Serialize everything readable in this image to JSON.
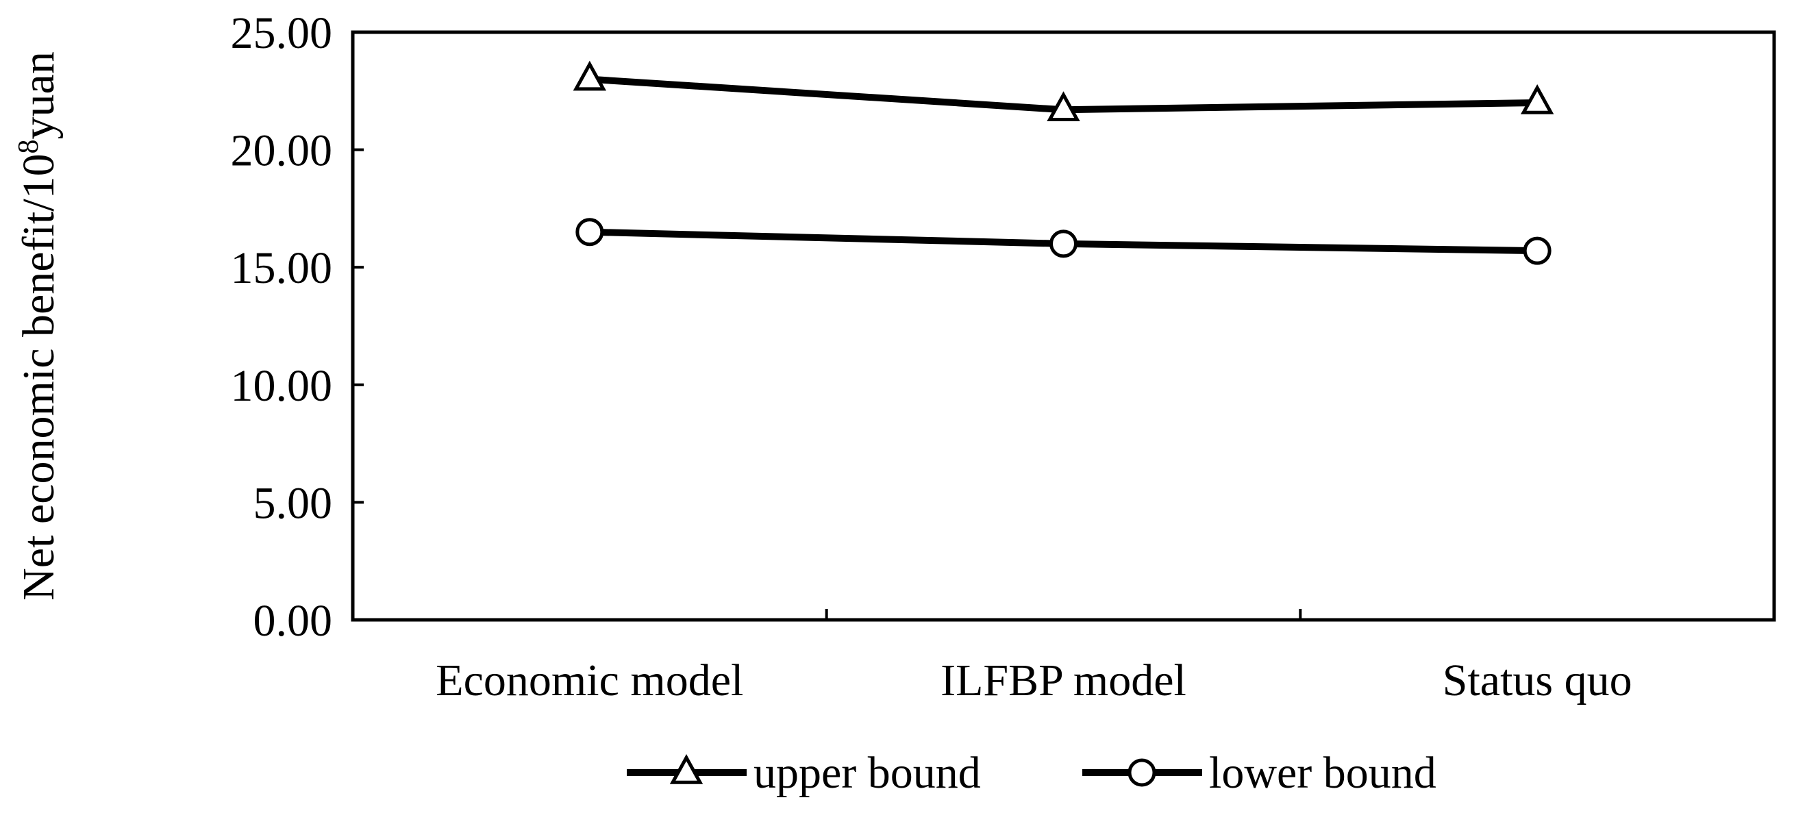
{
  "chart_data": {
    "type": "line",
    "categories": [
      "Economic model",
      "ILFBP model",
      "Status quo"
    ],
    "series": [
      {
        "name": "upper bound",
        "values": [
          23.0,
          21.7,
          22.0
        ],
        "marker": "triangle"
      },
      {
        "name": "lower bound",
        "values": [
          16.5,
          16.0,
          15.7
        ],
        "marker": "circle"
      }
    ],
    "ylabel": {
      "main": "Net economic benefit/10",
      "superscript": "8",
      "suffix": "yuan"
    },
    "ylim": [
      0,
      25
    ],
    "yticks": [
      0,
      5,
      10,
      15,
      20,
      25
    ],
    "ytick_labels": [
      "0.00",
      "5.00",
      "10.00",
      "15.00",
      "20.00",
      "25.00"
    ],
    "grid": false,
    "legend_position": "bottom",
    "colors": {
      "line": "#000000",
      "marker_fill": "#ffffff"
    }
  }
}
